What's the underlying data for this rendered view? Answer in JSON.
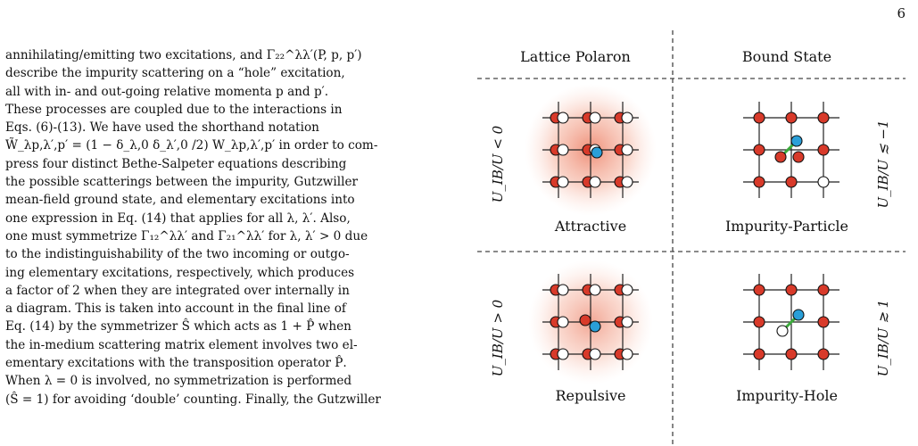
{
  "page_number": "6",
  "body_lines": [
    "annihilating/emitting two excitations, and Γ₂₂^λλ′(P, p, p′)",
    "describe the impurity scattering on a “hole” excitation,",
    "all with in- and out-going relative momenta p and p′.",
    "These processes are coupled due to the interactions in",
    "Eqs. (6)-(13). We have used the shorthand notation",
    "W̃_λp,λ′,p′ = (1 − δ_λ,0 δ_λ′,0 /2) W_λp,λ′,p′ in order to com-",
    "press four distinct Bethe-Salpeter equations describing",
    "the possible scatterings between the impurity, Gutzwiller",
    "mean-field ground state, and elementary excitations into",
    "one expression in Eq. (14) that applies for all λ, λ′. Also,",
    "one must symmetrize Γ₁₂^λλ′ and Γ₂₁^λλ′ for λ, λ′ > 0 due",
    "to the indistinguishability of the two incoming or outgo-",
    "ing elementary excitations, respectively, which produces",
    "a factor of 2 when they are integrated over internally in",
    "a diagram. This is taken into account in the final line of",
    "Eq. (14) by the symmetrizer Ŝ which acts as 1 + P̂ when",
    "the in-medium scattering matrix element involves two el-",
    "ementary excitations with the transposition operator P̂.",
    "When λ = 0 is involved, no symmetrization is performed",
    "(Ŝ = 1) for avoiding ‘double’ counting. Finally, the Gutzwiller"
  ],
  "figure": {
    "col_headers": [
      "Lattice Polaron",
      "Bound State"
    ],
    "row_labels_left": [
      "U_IB/U < 0",
      "U_IB/U > 0"
    ],
    "row_labels_right": [
      "U_IB/U ≲ −1",
      "U_IB/U ≳ 1"
    ],
    "panel_captions": [
      "Attractive",
      "Impurity-Particle",
      "Repulsive",
      "Impurity-Hole"
    ],
    "colors": {
      "particle": "#d83a2a",
      "impurity": "#2a9fd8",
      "hole": "#ffffff",
      "bond": "#3caa3c",
      "glow": "#f08a6e"
    }
  }
}
